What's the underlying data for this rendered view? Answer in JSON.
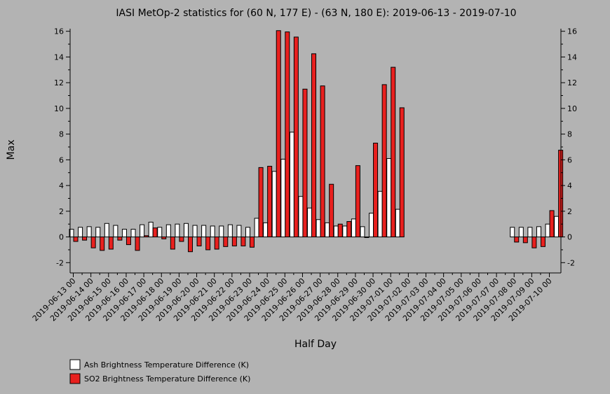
{
  "chart_data": {
    "type": "bar",
    "title": "IASI MetOp-2 statistics for (60 N, 177 E) - (63 N, 180 E): 2019-06-13 - 2019-07-10",
    "xlabel": "Half Day",
    "ylabel": "Max",
    "ylim": [
      -2.8,
      16.2
    ],
    "yticks": [
      -2,
      0,
      2,
      4,
      6,
      8,
      10,
      12,
      14,
      16
    ],
    "grid": false,
    "legend_position": "bottom-left",
    "x_tick_labels": [
      "2019-06-13 00",
      "2019-06-14 00",
      "2019-06-15 00",
      "2019-06-16 00",
      "2019-06-17 00",
      "2019-06-18 00",
      "2019-06-19 00",
      "2019-06-20 00",
      "2019-06-21 00",
      "2019-06-22 00",
      "2019-06-23 00",
      "2019-06-24 00",
      "2019-06-25 00",
      "2019-06-26 00",
      "2019-06-27 00",
      "2019-06-28 00",
      "2019-06-29 00",
      "2019-06-30 00",
      "2019-07-01 00",
      "2019-07-02 00",
      "2019-07-03 00",
      "2019-07-04 00",
      "2019-07-05 00",
      "2019-07-06 00",
      "2019-07-07 00",
      "2019-07-08 00",
      "2019-07-09 00",
      "2019-07-10 00"
    ],
    "series": [
      {
        "name": "Ash Brightness Temperature Difference (K)",
        "color": "#ffffff",
        "values": [
          0.6,
          0.75,
          0.8,
          0.75,
          1.05,
          0.9,
          0.6,
          0.6,
          0.95,
          1.15,
          0.75,
          0.95,
          1.0,
          1.05,
          0.9,
          0.9,
          0.85,
          0.85,
          0.95,
          0.9,
          0.75,
          1.45,
          1.1,
          5.1,
          6.05,
          8.15,
          3.15,
          2.25,
          1.35,
          1.1,
          0.85,
          0.85,
          1.4,
          0.8,
          1.85,
          3.55,
          6.1,
          2.15,
          null,
          null,
          null,
          null,
          null,
          null,
          null,
          null,
          null,
          null,
          null,
          null,
          0.75,
          0.75,
          0.75,
          0.8,
          1.0,
          1.6
        ]
      },
      {
        "name": "SO2 Brightness Temperature Difference (K)",
        "color": "#e8201e",
        "values": [
          -0.35,
          -0.25,
          -0.85,
          -1.05,
          -0.95,
          -0.25,
          -0.6,
          -1.05,
          0.1,
          0.7,
          -0.15,
          -0.95,
          -0.35,
          -1.15,
          -0.7,
          -1.0,
          -0.95,
          -0.75,
          -0.7,
          -0.7,
          -0.8,
          5.4,
          5.5,
          16.05,
          15.95,
          15.55,
          11.5,
          14.25,
          11.75,
          4.1,
          1.0,
          1.2,
          5.55,
          -0.05,
          7.3,
          11.85,
          13.2,
          10.05,
          null,
          null,
          null,
          null,
          null,
          null,
          null,
          null,
          null,
          null,
          null,
          null,
          -0.4,
          -0.45,
          -0.85,
          -0.75,
          2.05,
          6.75
        ]
      }
    ]
  }
}
